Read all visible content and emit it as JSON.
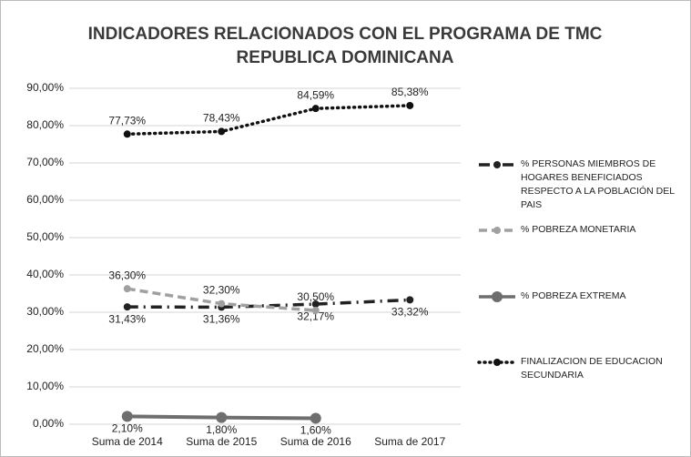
{
  "chart_data": {
    "type": "line",
    "title": [
      "INDICADORES RELACIONADOS CON EL PROGRAMA DE TMC",
      "REPUBLICA DOMINICANA"
    ],
    "categories": [
      "Suma de 2014",
      "Suma de 2015",
      "Suma de 2016",
      "Suma de 2017"
    ],
    "ylim": [
      0,
      90
    ],
    "yticks": [
      {
        "value": 0,
        "label": "0,00%"
      },
      {
        "value": 10,
        "label": "10,00%"
      },
      {
        "value": 20,
        "label": "20,00%"
      },
      {
        "value": 30,
        "label": "30,00%"
      },
      {
        "value": 40,
        "label": "40,00%"
      },
      {
        "value": 50,
        "label": "50,00%"
      },
      {
        "value": 60,
        "label": "60,00%"
      },
      {
        "value": 70,
        "label": "70,00%"
      },
      {
        "value": 80,
        "label": "80,00%"
      },
      {
        "value": 90,
        "label": "90,00%"
      }
    ],
    "grid": true,
    "legend": "right",
    "series": [
      {
        "name": "% PERSONAS MIEMBROS DE HOGARES BENEFICIADOS RESPECTO A LA POBLACIÓN DEL PAIS",
        "color": "#222222",
        "dash": "dashdot",
        "values": [
          31.43,
          31.36,
          32.17,
          33.32
        ],
        "value_labels": [
          "31,43%",
          "31,36%",
          "32,17%",
          "33,32%"
        ]
      },
      {
        "name": "% POBREZA MONETARIA",
        "color": "#a0a0a0",
        "dash": "dashed",
        "values": [
          36.3,
          32.3,
          30.5,
          null
        ],
        "value_labels": [
          "36,30%",
          "32,30%",
          "30,50%",
          null
        ]
      },
      {
        "name": "% POBREZA EXTREMA",
        "color": "#6e6e6e",
        "dash": "solid",
        "values": [
          2.1,
          1.8,
          1.6,
          null
        ],
        "value_labels": [
          "2,10%",
          "1,80%",
          "1,60%",
          null
        ]
      },
      {
        "name": "FINALIZACION DE EDUCACION SECUNDARIA",
        "color": "#111111",
        "dash": "dotted",
        "values": [
          77.73,
          78.43,
          84.59,
          85.38
        ],
        "value_labels": [
          "77,73%",
          "78,43%",
          "84,59%",
          "85,38%"
        ]
      }
    ]
  }
}
